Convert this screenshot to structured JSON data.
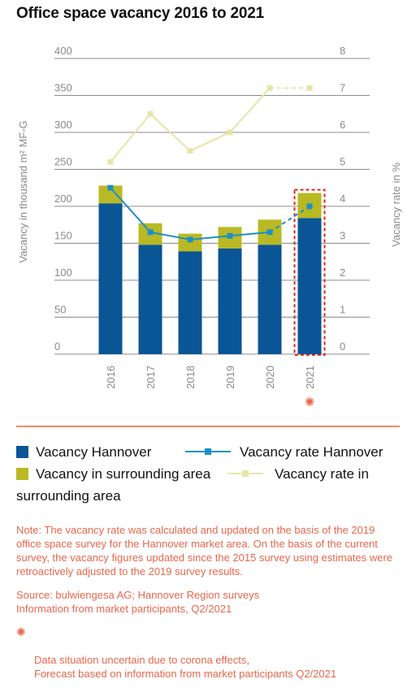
{
  "title": "Office space vacancy 2016 to 2021",
  "chart_data": {
    "type": "bar",
    "categories": [
      "2016",
      "2017",
      "2018",
      "2019",
      "2020",
      "2021"
    ],
    "series": [
      {
        "name": "Vacancy Hannover",
        "kind": "bar",
        "axis": "left",
        "color": "#0a5596",
        "values": [
          204,
          148,
          139,
          143,
          148,
          184
        ]
      },
      {
        "name": "Vacancy in surrounding area",
        "kind": "bar",
        "axis": "left",
        "color": "#b9b923",
        "values": [
          24,
          29,
          24,
          29,
          34,
          34
        ]
      },
      {
        "name": "Vacancy rate Hannover",
        "kind": "line",
        "axis": "right",
        "color": "#1d8fc8",
        "values": [
          4.5,
          3.3,
          3.1,
          3.2,
          3.3,
          4.0
        ]
      },
      {
        "name": "Vacancy rate in surrounding area",
        "kind": "line",
        "axis": "right",
        "color": "#e6e6a8",
        "values": [
          5.2,
          6.5,
          5.5,
          6.0,
          7.2,
          7.2
        ]
      }
    ],
    "ylabel_left": "Vacancy in thousand m² MF-G",
    "ylabel_right": "Vacancy rate in %",
    "ylim_left": [
      0,
      400
    ],
    "ylim_right": [
      0,
      8
    ],
    "yticks_left": [
      "0",
      "50",
      "100",
      "150",
      "200",
      "250",
      "300",
      "350",
      "400"
    ],
    "yticks_right": [
      "0",
      "1",
      "2",
      "3",
      "4",
      "5",
      "6",
      "7",
      "8"
    ],
    "forecast_category": "2021",
    "grid": true,
    "highlight_color": "#d7261d",
    "virus_color": "#e8674c"
  },
  "legend": {
    "item1": "Vacancy Hannover",
    "item2": "Vacancy rate Hannover",
    "item3": "Vacancy in surrounding area",
    "item4a": "Vacancy rate in",
    "item4b": "surrounding area"
  },
  "notes": {
    "note": "Note: The vacancy rate was calculated and updated on the basis of the 2019\noffice space survey for the Hannover market area. On the basis of the current\nsurvey, the vacancy figures updated since the 2015 survey using estimates were\nretroactively adjusted to the 2019 survey results.",
    "source": "Source: bulwiengesa AG; Hannover Region surveys\nInformation from market participants, Q2/2021",
    "virus": "Data situation uncertain due to corona effects,\nForecast based on information from market participants Q2/2021"
  }
}
